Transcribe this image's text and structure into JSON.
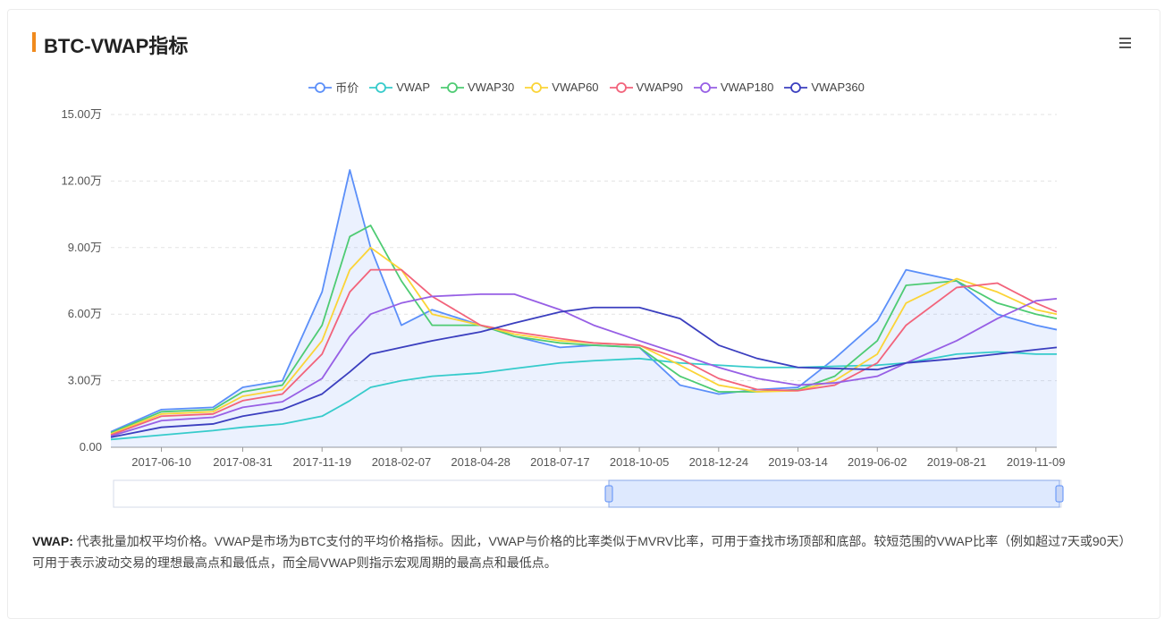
{
  "title": "BTC-VWAP指标",
  "menu_icon": "hamburger-menu-icon",
  "description": {
    "label": "VWAP:",
    "text": "代表批量加权平均价格。VWAP是市场为BTC支付的平均价格指标。因此，VWAP与价格的比率类似于MVRV比率，可用于查找市场顶部和底部。较短范围的VWAP比率（例如超过7天或90天）可用于表示波动交易的理想最高点和最低点，而全局VWAP则指示宏观周期的最高点和最低点。"
  },
  "chart_data": {
    "type": "line",
    "title": "BTC-VWAP指标",
    "ylim": [
      0,
      150000
    ],
    "y_ticks": [
      "0.00",
      "3.00万",
      "6.00万",
      "9.00万",
      "12.00万",
      "15.00万"
    ],
    "x_ticks": [
      "2017-06-10",
      "2017-08-31",
      "2017-11-19",
      "2018-02-07",
      "2018-04-28",
      "2018-07-17",
      "2018-10-05",
      "2018-12-24",
      "2019-03-14",
      "2019-06-02",
      "2019-08-21",
      "2019-11-09"
    ],
    "x": [
      "2017-04-20",
      "2017-06-10",
      "2017-08-01",
      "2017-08-31",
      "2017-10-10",
      "2017-11-19",
      "2017-12-17",
      "2018-01-07",
      "2018-02-07",
      "2018-03-10",
      "2018-04-28",
      "2018-06-01",
      "2018-07-17",
      "2018-08-20",
      "2018-10-05",
      "2018-11-15",
      "2018-12-24",
      "2019-02-01",
      "2019-03-14",
      "2019-04-20",
      "2019-06-02",
      "2019-07-01",
      "2019-08-21",
      "2019-10-01",
      "2019-11-09",
      "2019-11-30"
    ],
    "grid": true,
    "legend_position": "top",
    "series": [
      {
        "name": "币价",
        "color": "#5b8ff9",
        "fill": true,
        "values": [
          7000,
          17000,
          18000,
          27000,
          30000,
          70000,
          125000,
          90000,
          55000,
          62000,
          55000,
          50000,
          45000,
          46000,
          45000,
          28000,
          24000,
          26000,
          27000,
          40000,
          57000,
          80000,
          75000,
          60000,
          55000,
          53000
        ]
      },
      {
        "name": "VWAP",
        "color": "#36cbcb",
        "values": [
          3500,
          5500,
          7500,
          9000,
          10500,
          14000,
          21000,
          27000,
          30000,
          32000,
          33500,
          35500,
          38000,
          39000,
          40000,
          38000,
          37000,
          36000,
          36000,
          36500,
          37000,
          38000,
          42000,
          43000,
          42000,
          42000
        ]
      },
      {
        "name": "VWAP30",
        "color": "#4ecb73",
        "values": [
          6500,
          16000,
          17000,
          25000,
          28000,
          55000,
          95000,
          100000,
          75000,
          55000,
          55000,
          50000,
          47000,
          46000,
          45000,
          32000,
          25000,
          25000,
          26000,
          32000,
          48000,
          73000,
          75000,
          65000,
          60000,
          58000
        ]
      },
      {
        "name": "VWAP60",
        "color": "#fbd437",
        "values": [
          6000,
          15000,
          16000,
          23000,
          26000,
          48000,
          80000,
          90000,
          80000,
          60000,
          55000,
          51000,
          48000,
          47000,
          46000,
          37000,
          28000,
          25000,
          25500,
          30000,
          42000,
          65000,
          76000,
          70000,
          62000,
          60000
        ]
      },
      {
        "name": "VWAP90",
        "color": "#f2637b",
        "values": [
          5500,
          14000,
          15000,
          21000,
          24000,
          42000,
          70000,
          80000,
          80000,
          68000,
          55000,
          52000,
          49000,
          47000,
          46000,
          40000,
          31000,
          26000,
          25500,
          28000,
          38000,
          55000,
          72000,
          74000,
          65000,
          61000
        ]
      },
      {
        "name": "VWAP180",
        "color": "#975fe5",
        "values": [
          5000,
          12000,
          13500,
          18000,
          20500,
          31000,
          50000,
          60000,
          65000,
          68000,
          69000,
          69000,
          62000,
          55000,
          48000,
          42000,
          36000,
          31000,
          28000,
          29000,
          32000,
          38000,
          48000,
          58000,
          66000,
          67000
        ]
      },
      {
        "name": "VWAP360",
        "color": "#3b3fbf",
        "values": [
          4500,
          9000,
          10500,
          14000,
          17000,
          24000,
          34000,
          42000,
          45000,
          48000,
          52000,
          56000,
          61000,
          63000,
          63000,
          58000,
          46000,
          40000,
          36000,
          35500,
          35000,
          38000,
          40000,
          42000,
          44000,
          45000
        ]
      }
    ]
  },
  "zoom_slider": {
    "label": "zoom-slider"
  }
}
